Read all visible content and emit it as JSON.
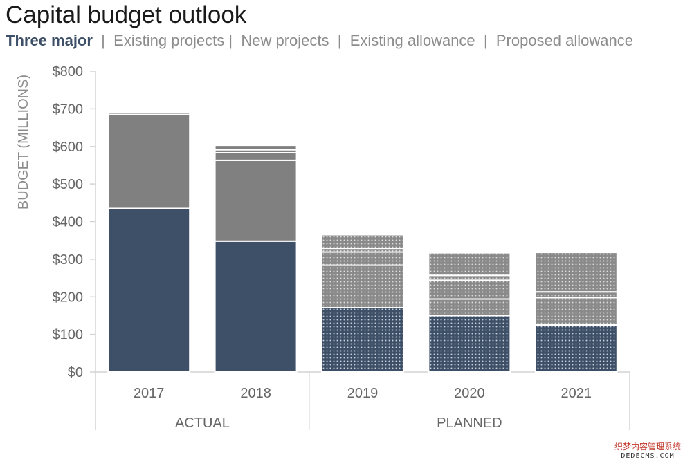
{
  "title": "Capital budget outlook",
  "legend": {
    "items": [
      "Three major",
      "Existing projects",
      "New projects",
      "Existing allowance",
      "Proposed allowance"
    ],
    "separator": "|"
  },
  "colors": {
    "three_major": "#3e5068",
    "other": "#808080",
    "divider": "#ffffff",
    "axis": "#d4d4d4",
    "tick_text": "#666666",
    "planned_pattern": "dotted"
  },
  "chart_data": {
    "type": "bar",
    "stacked": true,
    "title": "Capital budget outlook",
    "ylabel": "BUDGET (MILLIONS)",
    "xlabel": "",
    "ylim": [
      0,
      800
    ],
    "yticks": [
      "$0",
      "$100",
      "$200",
      "$300",
      "$400",
      "$500",
      "$600",
      "$700",
      "$800"
    ],
    "categories": [
      "2017",
      "2018",
      "2019",
      "2020",
      "2021"
    ],
    "groups": [
      {
        "label": "ACTUAL",
        "categories": [
          "2017",
          "2018"
        ]
      },
      {
        "label": "PLANNED",
        "categories": [
          "2019",
          "2020",
          "2021"
        ]
      }
    ],
    "series": [
      {
        "name": "Three major",
        "values": [
          435,
          348,
          171,
          150,
          125
        ]
      },
      {
        "name": "Existing projects",
        "values": [
          250,
          215,
          113,
          44,
          73
        ]
      },
      {
        "name": "New projects",
        "values": [
          0,
          20,
          35,
          50,
          15
        ]
      },
      {
        "name": "Existing allowance",
        "values": [
          5,
          8,
          10,
          13,
          0
        ]
      },
      {
        "name": "Proposed allowance",
        "values": [
          3,
          12,
          36,
          60,
          105
        ]
      }
    ],
    "grid": false,
    "legend_position": "top"
  },
  "watermark": {
    "line1": "织梦内容管理系统",
    "line2": "DEDECMS.COM"
  }
}
